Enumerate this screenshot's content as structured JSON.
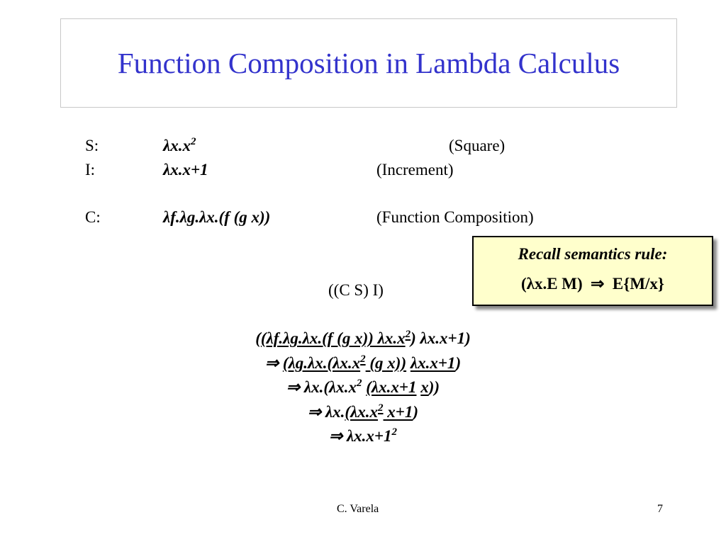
{
  "title": "Function Composition in Lambda Calculus",
  "definitions": [
    {
      "label": "S:",
      "expr": "λx.x",
      "sup": "2",
      "note": "(Square)"
    },
    {
      "label": "I:",
      "expr": "λx.x+1",
      "sup": "",
      "note": "(Increment)"
    },
    {
      "label": "C:",
      "expr": "λf.λg.λx.(f (g x))",
      "sup": "",
      "note": "(Function Composition)"
    }
  ],
  "rule_box": {
    "heading": "Recall semantics rule:",
    "rule": "(λx.E M)  ⇒  E{M/x}"
  },
  "application": "((C S) I)",
  "derivation": [
    [
      {
        "t": "("
      },
      {
        "t": "(λf.λg.λx.(f (g x)) λx.x",
        "u": true
      },
      {
        "t": "2",
        "sup": true,
        "u": true
      },
      {
        "t": ") λx.x+1)"
      }
    ],
    [
      {
        "t": "⇒ "
      },
      {
        "t": "(λg.λx.(λx.x",
        "u": true
      },
      {
        "t": "2",
        "sup": true,
        "u": true
      },
      {
        "t": " (g x))",
        "u": true
      },
      {
        "t": " "
      },
      {
        "t": "λx.x+1",
        "u": true
      },
      {
        "t": ")"
      }
    ],
    [
      {
        "t": "⇒ λx.(λx.x"
      },
      {
        "t": "2",
        "sup": true
      },
      {
        "t": " "
      },
      {
        "t": "(λx.x+1",
        "u": true
      },
      {
        "t": " "
      },
      {
        "t": "x",
        "u": true
      },
      {
        "t": "))"
      }
    ],
    [
      {
        "t": "⇒ λx."
      },
      {
        "t": "(λx.x",
        "u": true
      },
      {
        "t": "2",
        "sup": true,
        "u": true
      },
      {
        "t": " x+1",
        "u": true
      },
      {
        "t": ")"
      }
    ],
    [
      {
        "t": "⇒ λx.x+1"
      },
      {
        "t": "2",
        "sup": true
      }
    ]
  ],
  "footer": {
    "author": "C. Varela",
    "page": "7"
  }
}
